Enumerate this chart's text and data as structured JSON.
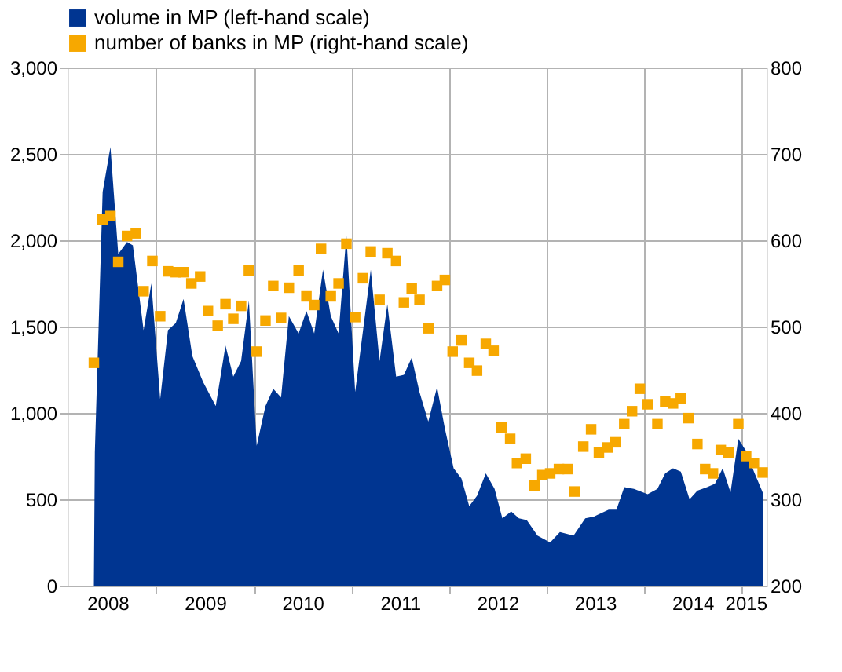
{
  "chart_data": {
    "type": "area",
    "xlim": [
      2008.09,
      2015.26
    ],
    "xticks": [
      {
        "value": 2008.5,
        "label": "2008"
      },
      {
        "value": 2009,
        "label": null
      },
      {
        "value": 2009.5,
        "label": "2009"
      },
      {
        "value": 2010,
        "label": null
      },
      {
        "value": 2010.5,
        "label": "2010"
      },
      {
        "value": 2011,
        "label": null
      },
      {
        "value": 2011.5,
        "label": "2011"
      },
      {
        "value": 2012,
        "label": null
      },
      {
        "value": 2012.5,
        "label": "2012"
      },
      {
        "value": 2013,
        "label": null
      },
      {
        "value": 2013.5,
        "label": "2013"
      },
      {
        "value": 2014,
        "label": null
      },
      {
        "value": 2014.5,
        "label": "2014"
      },
      {
        "value": 2015,
        "label": null
      },
      {
        "value": 2015.26,
        "label": "2015"
      }
    ],
    "ylim": [
      0,
      3000
    ],
    "yticks": [
      0,
      500,
      {
        "value": 1000,
        "label": "1,000"
      },
      {
        "value": 1500,
        "label": "1,500"
      },
      {
        "value": 2000,
        "label": "2,000"
      },
      {
        "value": 2500,
        "label": "2,500"
      },
      {
        "value": 3000,
        "label": "3,000"
      }
    ],
    "y2lim": [
      200,
      800
    ],
    "y2ticks": [
      200,
      300,
      400,
      500,
      600,
      700,
      800
    ],
    "grid": true,
    "legend": "top",
    "series": [
      {
        "name": "volume in MP (left-hand scale)",
        "color": "#003591",
        "x": [
          2008.36,
          2008.37,
          2008.45,
          2008.53,
          2008.61,
          2008.7,
          2008.76,
          2008.87,
          2008.95,
          2009.04,
          2009.12,
          2009.2,
          2009.28,
          2009.37,
          2009.48,
          2009.61,
          2009.71,
          2009.79,
          2009.87,
          2009.95,
          2010.03,
          2010.12,
          2010.2,
          2010.28,
          2010.36,
          2010.46,
          2010.54,
          2010.62,
          2010.71,
          2010.79,
          2010.87,
          2010.95,
          2011.04,
          2011.2,
          2011.29,
          2011.37,
          2011.46,
          2011.54,
          2011.62,
          2011.7,
          2011.79,
          2011.88,
          2011.96,
          2012.05,
          2012.13,
          2012.21,
          2012.29,
          2012.38,
          2012.47,
          2012.55,
          2012.64,
          2012.72,
          2012.8,
          2012.91,
          2013.04,
          2013.14,
          2013.28,
          2013.4,
          2013.49,
          2013.64,
          2013.72,
          2013.8,
          2013.9,
          2014.04,
          2014.14,
          2014.22,
          2014.3,
          2014.38,
          2014.47,
          2014.55,
          2014.65,
          2014.73,
          2014.81,
          2014.89,
          2014.97,
          2015.05,
          2015.13,
          2015.22
        ],
        "values": [
          0,
          770,
          2280,
          2540,
          1920,
          1990,
          1970,
          1480,
          1750,
          1080,
          1480,
          1520,
          1660,
          1330,
          1180,
          1040,
          1390,
          1210,
          1300,
          1650,
          810,
          1040,
          1140,
          1090,
          1560,
          1460,
          1590,
          1460,
          1830,
          1560,
          1460,
          2030,
          1120,
          1830,
          1300,
          1630,
          1210,
          1220,
          1320,
          1120,
          950,
          1150,
          910,
          680,
          620,
          460,
          520,
          650,
          560,
          390,
          430,
          390,
          380,
          290,
          250,
          310,
          290,
          390,
          400,
          440,
          440,
          570,
          560,
          530,
          560,
          650,
          680,
          660,
          500,
          550,
          570,
          590,
          680,
          540,
          850,
          780,
          660,
          540
        ]
      },
      {
        "name": "number of banks in MP (right-hand scale)",
        "color": "#f7a800",
        "type": "scatter",
        "marker": "square",
        "axis": "y2",
        "x": [
          2008.36,
          2008.45,
          2008.53,
          2008.61,
          2008.7,
          2008.79,
          2008.87,
          2008.96,
          2009.04,
          2009.12,
          2009.2,
          2009.28,
          2009.36,
          2009.45,
          2009.53,
          2009.63,
          2009.71,
          2009.79,
          2009.87,
          2009.95,
          2010.03,
          2010.12,
          2010.2,
          2010.28,
          2010.36,
          2010.46,
          2010.54,
          2010.62,
          2010.69,
          2010.79,
          2010.87,
          2010.95,
          2011.04,
          2011.12,
          2011.2,
          2011.29,
          2011.37,
          2011.46,
          2011.54,
          2011.62,
          2011.7,
          2011.79,
          2011.88,
          2011.96,
          2012.04,
          2012.13,
          2012.21,
          2012.29,
          2012.38,
          2012.46,
          2012.54,
          2012.63,
          2012.7,
          2012.79,
          2012.88,
          2012.96,
          2013.04,
          2013.13,
          2013.22,
          2013.29,
          2013.38,
          2013.46,
          2013.54,
          2013.63,
          2013.71,
          2013.8,
          2013.88,
          2013.96,
          2014.04,
          2014.14,
          2014.22,
          2014.3,
          2014.38,
          2014.46,
          2014.55,
          2014.63,
          2014.71,
          2014.79,
          2014.87,
          2014.97,
          2015.05,
          2015.13,
          2015.22
        ],
        "values": [
          458,
          624,
          628,
          575,
          605,
          608,
          541,
          576,
          512,
          564,
          563,
          563,
          550,
          558,
          518,
          501,
          526,
          509,
          524,
          565,
          471,
          507,
          547,
          510,
          545,
          565,
          535,
          525,
          590,
          535,
          550,
          596,
          511,
          556,
          587,
          531,
          585,
          576,
          528,
          544,
          531,
          498,
          547,
          554,
          471,
          484,
          458,
          449,
          480,
          472,
          383,
          370,
          342,
          347,
          316,
          328,
          330,
          335,
          335,
          309,
          361,
          381,
          354,
          360,
          366,
          387,
          402,
          428,
          410,
          387,
          413,
          411,
          417,
          394,
          364,
          335,
          330,
          357,
          354,
          387,
          350,
          342,
          331
        ]
      }
    ]
  }
}
